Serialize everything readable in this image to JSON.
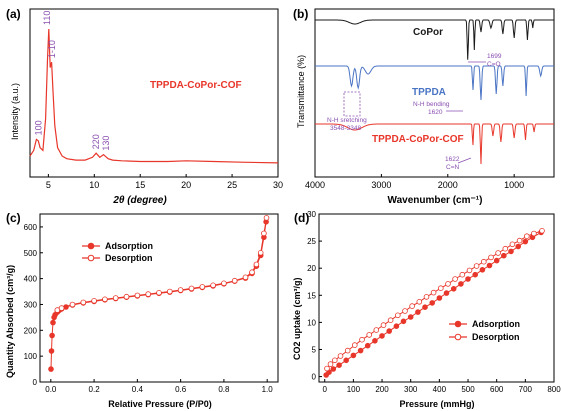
{
  "colors": {
    "red": "#e8362a",
    "blue": "#4a74c4",
    "black": "#1a1a1a",
    "purple": "#8a4fb0",
    "axis": "#000000"
  },
  "chart_data": [
    {
      "panel": "(a)",
      "type": "line",
      "xlabel": "2θ (degree)",
      "ylabel": "Intensity (a.u.)",
      "xlim": [
        3,
        30
      ],
      "xticks": [
        "5",
        "10",
        "15",
        "20",
        "25",
        "30"
      ],
      "legend": "TPPDA-CoPor-COF",
      "peak_labels": [
        "100",
        "110",
        "1-10",
        "220",
        "130"
      ],
      "series": [
        {
          "name": "TPPDA-CoPor-COF",
          "x": [
            3,
            3.4,
            3.7,
            3.9,
            4.1,
            4.4,
            4.7,
            4.9,
            5.05,
            5.2,
            5.35,
            5.5,
            5.7,
            6.0,
            6.5,
            7.0,
            8.0,
            9.0,
            9.8,
            10.2,
            10.6,
            11.0,
            11.5,
            12.0,
            13.0,
            15.0,
            18.0,
            20.0,
            23.0,
            26.0,
            30.0
          ],
          "y": [
            0.08,
            0.12,
            0.2,
            0.19,
            0.14,
            0.12,
            0.35,
            0.78,
            1.0,
            0.72,
            0.76,
            0.55,
            0.3,
            0.14,
            0.08,
            0.06,
            0.05,
            0.05,
            0.07,
            0.1,
            0.07,
            0.09,
            0.06,
            0.05,
            0.045,
            0.04,
            0.04,
            0.045,
            0.04,
            0.035,
            0.03
          ]
        }
      ]
    },
    {
      "panel": "(b)",
      "type": "line",
      "xlabel": "Wavenumber (cm⁻¹)",
      "ylabel": "Transmittance (%)",
      "xlim": [
        4000,
        400
      ],
      "xticks": [
        "4000",
        "3000",
        "2000",
        "1000"
      ],
      "series": [
        {
          "name": "CoPor",
          "label": "CoPor"
        },
        {
          "name": "TPPDA",
          "label": "TPPDA"
        },
        {
          "name": "TPPDA-CoPor-COF",
          "label": "TPPDA-CoPor-COF"
        }
      ],
      "annotations": [
        {
          "text": "1699",
          "text2": "C=O"
        },
        {
          "text": "N-H bending",
          "text2": "1620"
        },
        {
          "text": "N-H sretching",
          "text2": "3548-3348"
        },
        {
          "text": "1622",
          "text2": "C=N"
        }
      ]
    },
    {
      "panel": "(c)",
      "type": "scatter",
      "xlabel": "Relative Pressure (P/P0)",
      "ylabel": "Quantity Absorbed (cm³/g)",
      "xlim": [
        -0.05,
        1.05
      ],
      "ylim": [
        0,
        650
      ],
      "xticks": [
        "0.0",
        "0.2",
        "0.4",
        "0.6",
        "0.8",
        "1.0"
      ],
      "yticks": [
        "0",
        "100",
        "200",
        "300",
        "400",
        "500",
        "600"
      ],
      "series": [
        {
          "name": "Adsorption",
          "x": [
            0.001,
            0.003,
            0.006,
            0.01,
            0.015,
            0.02,
            0.03,
            0.04,
            0.05,
            0.07,
            0.1,
            0.15,
            0.2,
            0.25,
            0.3,
            0.35,
            0.4,
            0.45,
            0.5,
            0.55,
            0.6,
            0.65,
            0.7,
            0.75,
            0.8,
            0.85,
            0.9,
            0.93,
            0.95,
            0.97,
            0.985,
            0.995
          ],
          "y": [
            50,
            120,
            180,
            230,
            250,
            260,
            270,
            278,
            283,
            290,
            298,
            306,
            312,
            318,
            323,
            328,
            333,
            338,
            343,
            348,
            354,
            360,
            366,
            372,
            380,
            390,
            402,
            420,
            448,
            490,
            560,
            620
          ]
        },
        {
          "name": "Desorption",
          "x": [
            0.03,
            0.05,
            0.1,
            0.15,
            0.2,
            0.25,
            0.3,
            0.35,
            0.4,
            0.45,
            0.5,
            0.55,
            0.6,
            0.65,
            0.7,
            0.75,
            0.8,
            0.85,
            0.9,
            0.93,
            0.95,
            0.97,
            0.985,
            0.997
          ],
          "y": [
            278,
            286,
            300,
            308,
            314,
            320,
            325,
            330,
            335,
            340,
            345,
            350,
            356,
            362,
            368,
            374,
            382,
            392,
            405,
            425,
            455,
            500,
            575,
            635
          ]
        }
      ]
    },
    {
      "panel": "(d)",
      "type": "scatter",
      "xlabel": "Pressure (mmHg)",
      "ylabel": "CO2 uptake (cm³/g)",
      "xlim": [
        -20,
        800
      ],
      "ylim": [
        -1,
        30
      ],
      "xticks": [
        "0",
        "100",
        "200",
        "300",
        "400",
        "500",
        "600",
        "700",
        "800"
      ],
      "yticks": [
        "0",
        "5",
        "10",
        "15",
        "20",
        "25",
        "30"
      ],
      "series": [
        {
          "name": "Adsorption",
          "x": [
            5,
            15,
            30,
            50,
            75,
            100,
            125,
            150,
            175,
            200,
            225,
            250,
            275,
            300,
            325,
            350,
            375,
            400,
            425,
            450,
            475,
            500,
            525,
            550,
            575,
            600,
            625,
            650,
            675,
            700,
            725,
            755
          ],
          "y": [
            0.3,
            0.8,
            1.4,
            2.1,
            3.0,
            3.9,
            4.8,
            5.7,
            6.6,
            7.5,
            8.4,
            9.3,
            10.2,
            11.0,
            11.9,
            12.8,
            13.6,
            14.5,
            15.4,
            16.2,
            17.1,
            18.0,
            18.8,
            19.7,
            20.5,
            21.4,
            22.3,
            23.1,
            24.0,
            24.9,
            25.7,
            26.6
          ]
        },
        {
          "name": "Desorption",
          "x": [
            8,
            20,
            35,
            55,
            80,
            105,
            130,
            155,
            180,
            205,
            230,
            255,
            280,
            305,
            330,
            355,
            380,
            405,
            430,
            455,
            480,
            505,
            530,
            555,
            580,
            605,
            630,
            655,
            680,
            705,
            730,
            758
          ],
          "y": [
            1.5,
            2.3,
            3.0,
            3.8,
            4.8,
            5.8,
            6.8,
            7.7,
            8.6,
            9.5,
            10.4,
            11.3,
            12.1,
            13.0,
            13.8,
            14.7,
            15.5,
            16.3,
            17.1,
            18.0,
            18.8,
            19.6,
            20.4,
            21.2,
            22.0,
            22.8,
            23.6,
            24.4,
            25.1,
            25.9,
            26.4,
            26.9
          ]
        }
      ]
    }
  ]
}
